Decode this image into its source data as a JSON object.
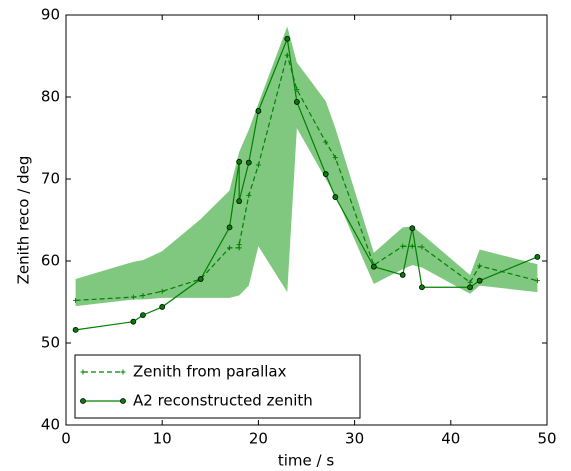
{
  "chart_data": {
    "type": "line",
    "xlabel": "time / s",
    "ylabel": "Zenith reco / deg",
    "xlim": [
      0,
      50
    ],
    "ylim": [
      40,
      90
    ],
    "xticks": [
      0,
      10,
      20,
      30,
      40,
      50
    ],
    "yticks": [
      40,
      50,
      60,
      70,
      80,
      90
    ],
    "legend": "lower left",
    "x": [
      1,
      7,
      8,
      10,
      14,
      17,
      18,
      18,
      19,
      20,
      23,
      24,
      27,
      28,
      32,
      35,
      36,
      37,
      42,
      43,
      49
    ],
    "band": {
      "color": "#80c880",
      "upper": [
        57.8,
        59.9,
        60.1,
        61.2,
        65.1,
        68.6,
        73.3,
        73.3,
        76.0,
        79.2,
        88.6,
        84.2,
        79.5,
        76.2,
        61.0,
        64.1,
        64.2,
        63.3,
        58.3,
        61.4,
        59.6
      ],
      "lower": [
        54.5,
        55.3,
        55.3,
        55.5,
        55.5,
        55.5,
        55.8,
        55.8,
        57.0,
        61.8,
        56.2,
        76.2,
        70.0,
        68.0,
        57.2,
        59.0,
        59.5,
        59.2,
        56.0,
        57.0,
        56.2
      ]
    },
    "series": [
      {
        "name": "Zenith from parallax",
        "color": "#008000",
        "style": "dashed",
        "values": [
          55.2,
          55.6,
          55.8,
          56.3,
          57.8,
          61.6,
          61.6,
          62.0,
          68.0,
          71.7,
          85.1,
          80.9,
          74.5,
          72.6,
          59.5,
          61.8,
          61.8,
          61.7,
          57.4,
          59.4,
          57.6
        ]
      },
      {
        "name": "A2 reconstructed zenith",
        "color": "#008000",
        "style": "solid",
        "values": [
          51.6,
          52.6,
          53.4,
          54.4,
          57.8,
          64.1,
          72.1,
          67.3,
          72.0,
          78.3,
          87.1,
          79.4,
          70.6,
          67.8,
          59.3,
          58.3,
          64.0,
          56.8,
          56.8,
          57.6,
          60.5
        ]
      }
    ]
  }
}
